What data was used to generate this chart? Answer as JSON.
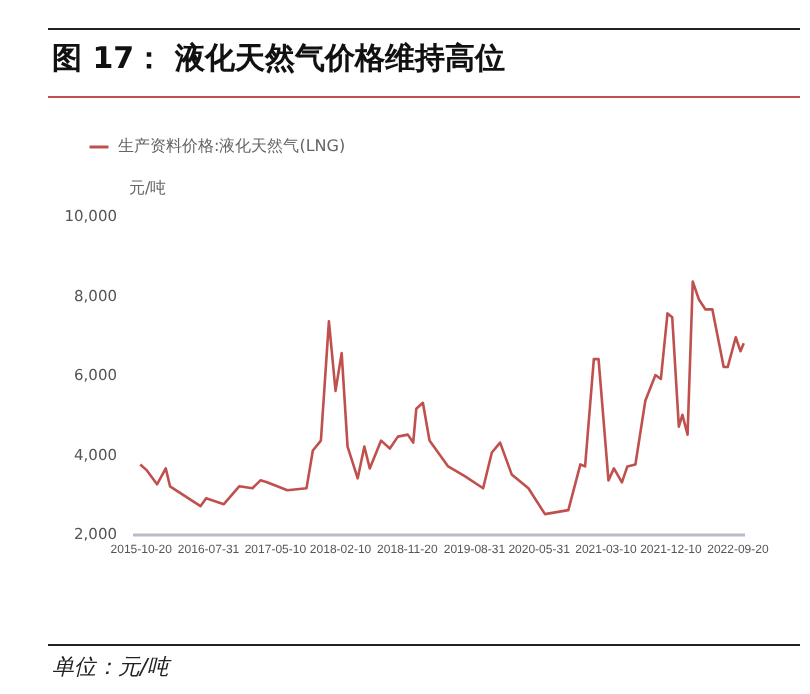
{
  "chart_data": {
    "type": "line",
    "title": "图 17： 液化天然气价格维持高位",
    "ylabel": "元/吨",
    "annotations": [
      "单位：元/吨"
    ],
    "x": [
      "2015-10-20",
      "2015-11-17",
      "2015-12-30",
      "2016-02-05",
      "2016-02-23",
      "2016-07-01",
      "2016-07-25",
      "2016-10-08",
      "2016-12-12",
      "2017-02-06",
      "2017-03-12",
      "2017-04-09",
      "2017-07-04",
      "2017-09-23",
      "2017-10-20",
      "2017-11-23",
      "2017-12-27",
      "2018-01-24",
      "2018-02-19",
      "2018-03-16",
      "2018-04-28",
      "2018-05-26",
      "2018-06-18",
      "2018-08-05",
      "2018-09-11",
      "2018-10-15",
      "2018-11-26",
      "2018-12-19",
      "2019-01-01",
      "2019-01-29",
      "2019-02-26",
      "2019-05-16",
      "2019-07-27",
      "2019-10-11",
      "2019-11-17",
      "2019-12-22",
      "2020-02-09",
      "2020-04-20",
      "2020-06-29",
      "2020-10-06",
      "2020-11-26",
      "2020-12-16",
      "2021-01-22",
      "2021-02-11",
      "2021-03-25",
      "2021-04-17",
      "2021-05-21",
      "2021-06-13",
      "2021-07-17",
      "2021-08-28",
      "2021-10-10",
      "2021-11-02",
      "2021-11-30",
      "2021-12-20",
      "2022-01-17",
      "2022-02-01",
      "2022-02-23",
      "2022-03-17",
      "2022-04-12",
      "2022-05-10",
      "2022-06-08",
      "2022-07-26",
      "2022-08-12",
      "2022-09-15",
      "2022-10-05",
      "2022-10-19"
    ],
    "series": [
      {
        "name": "生产资料价格:液化天然气(LNG)",
        "color": "#c0504d",
        "values": [
          3750,
          3600,
          3250,
          3650,
          3200,
          2700,
          2900,
          2750,
          3200,
          3150,
          3350,
          3300,
          3100,
          3150,
          4100,
          4350,
          7350,
          5600,
          6550,
          4200,
          3400,
          4200,
          3650,
          4350,
          4150,
          4450,
          4500,
          4300,
          5150,
          5300,
          4350,
          3700,
          3450,
          3150,
          4050,
          4300,
          3500,
          3150,
          2500,
          2600,
          3750,
          3700,
          6400,
          6400,
          3350,
          3650,
          3300,
          3700,
          3750,
          5350,
          6000,
          5900,
          7550,
          7450,
          4700,
          5000,
          4500,
          8350,
          7900,
          7650,
          7650,
          6200,
          6200,
          6950,
          6600,
          6800
        ]
      }
    ],
    "xlim": [
      "2015-09-15",
      "2022-10-20"
    ],
    "xticks": [
      "2015-10-20",
      "2016-07-31",
      "2017-05-10",
      "2018-02-10",
      "2018-11-20",
      "2019-08-31",
      "2020-05-31",
      "2021-03-10",
      "2021-12-10",
      "2022-09-20"
    ],
    "ylim": [
      2000,
      10000
    ],
    "yticks": [
      {
        "value": 2000,
        "label": "2,000"
      },
      {
        "value": 4000,
        "label": "4,000"
      },
      {
        "value": 6000,
        "label": "6,000"
      },
      {
        "value": 8000,
        "label": "8,000"
      },
      {
        "value": 10000,
        "label": "10,000"
      }
    ],
    "legend": "top left",
    "grid": false,
    "marker": "none",
    "line_style": "solid"
  }
}
